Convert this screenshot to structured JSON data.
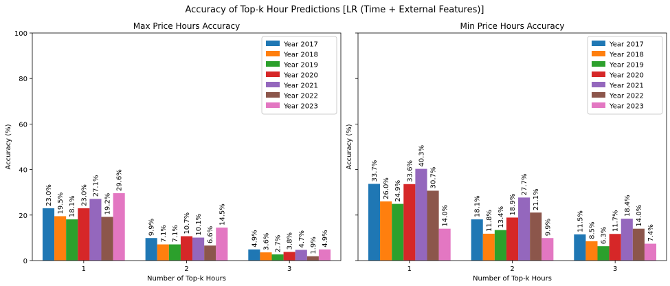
{
  "figure": {
    "suptitle": "Accuracy of Top-k Hour Predictions [LR (Time + External Features)]"
  },
  "chart_data": [
    {
      "type": "bar",
      "title": "Max Price Hours Accuracy",
      "xlabel": "Number of Top-k Hours",
      "ylabel": "Accuracy (%)",
      "ylim": [
        0,
        100
      ],
      "yticks": [
        0,
        20,
        40,
        60,
        80,
        100
      ],
      "categories": [
        "1",
        "2",
        "3"
      ],
      "legend_position": "top-right",
      "series": [
        {
          "name": "Year 2017",
          "color": "#1f77b4",
          "values": [
            23.0,
            9.9,
            4.9
          ],
          "labels": [
            "23.0%",
            "9.9%",
            "4.9%"
          ]
        },
        {
          "name": "Year 2018",
          "color": "#ff7f0e",
          "values": [
            19.5,
            7.1,
            3.6
          ],
          "labels": [
            "19.5%",
            "7.1%",
            "3.6%"
          ]
        },
        {
          "name": "Year 2019",
          "color": "#2ca02c",
          "values": [
            18.1,
            7.1,
            2.7
          ],
          "labels": [
            "18.1%",
            "7.1%",
            "2.7%"
          ]
        },
        {
          "name": "Year 2020",
          "color": "#d62728",
          "values": [
            23.0,
            10.7,
            3.8
          ],
          "labels": [
            "23.0%",
            "10.7%",
            "3.8%"
          ]
        },
        {
          "name": "Year 2021",
          "color": "#9467bd",
          "values": [
            27.1,
            10.1,
            4.7
          ],
          "labels": [
            "27.1%",
            "10.1%",
            "4.7%"
          ]
        },
        {
          "name": "Year 2022",
          "color": "#8c564b",
          "values": [
            19.2,
            6.6,
            1.9
          ],
          "labels": [
            "19.2%",
            "6.6%",
            "1.9%"
          ]
        },
        {
          "name": "Year 2023",
          "color": "#e377c2",
          "values": [
            29.6,
            14.5,
            4.9
          ],
          "labels": [
            "29.6%",
            "14.5%",
            "4.9%"
          ]
        }
      ]
    },
    {
      "type": "bar",
      "title": "Min Price Hours Accuracy",
      "xlabel": "Number of Top-k Hours",
      "ylabel": "Accuracy (%)",
      "ylim": [
        0,
        100
      ],
      "yticks": [
        0,
        20,
        40,
        60,
        80,
        100
      ],
      "categories": [
        "1",
        "2",
        "3"
      ],
      "legend_position": "top-right",
      "series": [
        {
          "name": "Year 2017",
          "color": "#1f77b4",
          "values": [
            33.7,
            18.1,
            11.5
          ],
          "labels": [
            "33.7%",
            "18.1%",
            "11.5%"
          ]
        },
        {
          "name": "Year 2018",
          "color": "#ff7f0e",
          "values": [
            26.0,
            11.8,
            8.5
          ],
          "labels": [
            "26.0%",
            "11.8%",
            "8.5%"
          ]
        },
        {
          "name": "Year 2019",
          "color": "#2ca02c",
          "values": [
            24.9,
            13.4,
            6.3
          ],
          "labels": [
            "24.9%",
            "13.4%",
            "6.3%"
          ]
        },
        {
          "name": "Year 2020",
          "color": "#d62728",
          "values": [
            33.6,
            18.9,
            11.7
          ],
          "labels": [
            "33.6%",
            "18.9%",
            "11.7%"
          ]
        },
        {
          "name": "Year 2021",
          "color": "#9467bd",
          "values": [
            40.3,
            27.7,
            18.4
          ],
          "labels": [
            "40.3%",
            "27.7%",
            "18.4%"
          ]
        },
        {
          "name": "Year 2022",
          "color": "#8c564b",
          "values": [
            30.7,
            21.1,
            14.0
          ],
          "labels": [
            "30.7%",
            "21.1%",
            "14.0%"
          ]
        },
        {
          "name": "Year 2023",
          "color": "#e377c2",
          "values": [
            14.0,
            9.9,
            7.4
          ],
          "labels": [
            "14.0%",
            "9.9%",
            "7.4%"
          ]
        }
      ]
    }
  ]
}
